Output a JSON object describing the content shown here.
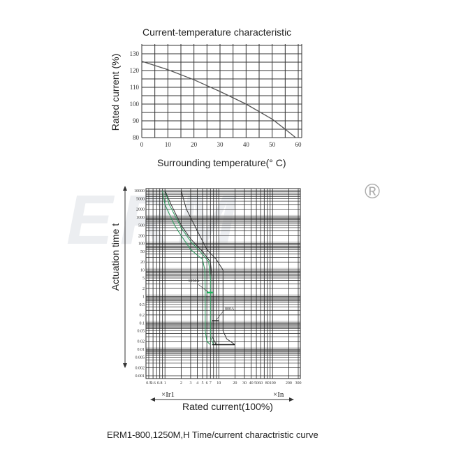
{
  "chart_data": [
    {
      "type": "line",
      "title": "Current-temperature characteristic",
      "xlabel": "Surrounding temperature(° C)",
      "ylabel": "Rated current (%)",
      "xlim": [
        0,
        60
      ],
      "ylim": [
        80,
        130
      ],
      "xticks": [
        0,
        10,
        20,
        30,
        40,
        50,
        60
      ],
      "yticks": [
        80,
        90,
        100,
        110,
        120,
        130
      ],
      "grid": true,
      "series": [
        {
          "x": [
            0,
            10,
            20,
            30,
            40,
            50,
            55,
            59
          ],
          "y": [
            125.5,
            120.5,
            114.5,
            107.5,
            100,
            91,
            85,
            80
          ],
          "color": "#555555"
        }
      ]
    },
    {
      "type": "line",
      "title": "ERM1-800,1250M,H Time/current charactristic curve",
      "ylabel": "Actuation time t",
      "xlabel": "Rated current(100%)",
      "xscale": "log",
      "yscale": "log",
      "xlim": [
        0.5,
        300
      ],
      "ylim": [
        0.001,
        10000
      ],
      "grid": true,
      "xticks": [
        "0.5",
        "0.6",
        "0.8",
        "1",
        "2",
        "3",
        "4",
        "5",
        "6",
        "7",
        "10",
        "20",
        "30",
        "40",
        "50",
        "60",
        "80",
        "100",
        "200",
        "300"
      ],
      "yticks": [
        "10000",
        "5000",
        "2000",
        "1000",
        "500",
        "200",
        "100",
        "50",
        "20",
        "10",
        "5",
        "2",
        "1",
        "0.5",
        "0.2",
        "0.1",
        "0.05",
        "0.02",
        "0.01",
        "0.005",
        "0.002",
        "0.001"
      ],
      "x_left_label": "×Ir1",
      "x_right_label": "×In",
      "annotations": [
        "1250A",
        "800A"
      ],
      "series": [
        {
          "name": "1250A",
          "color": "#2a9a5a",
          "x": [
            0.9,
            1,
            1.5,
            2,
            3,
            5,
            5.5,
            5.6,
            5.6,
            6,
            7
          ],
          "y": [
            10000,
            3000,
            500,
            200,
            60,
            25,
            10,
            2,
            0.05,
            0.02,
            0.015
          ]
        },
        {
          "name": "1250A",
          "color": "#2a9a5a",
          "x": [
            1,
            1.2,
            2,
            3,
            5,
            6.5,
            7,
            7,
            8
          ],
          "y": [
            10000,
            3000,
            400,
            120,
            40,
            20,
            5,
            0.03,
            0.015
          ]
        },
        {
          "name": "800A",
          "color": "#333333",
          "x": [
            1,
            1.3,
            2,
            3,
            5,
            7,
            7.5,
            7.5,
            9
          ],
          "y": [
            10000,
            3000,
            500,
            150,
            50,
            20,
            5,
            0.03,
            0.015
          ]
        },
        {
          "name": "800A",
          "color": "#333333",
          "x": [
            2,
            2.5,
            4,
            6,
            9,
            12,
            12,
            14,
            20
          ],
          "y": [
            10000,
            2000,
            300,
            60,
            25,
            10,
            0.05,
            0.025,
            0.015
          ]
        }
      ]
    }
  ],
  "watermark": "ERM",
  "registered": "®"
}
